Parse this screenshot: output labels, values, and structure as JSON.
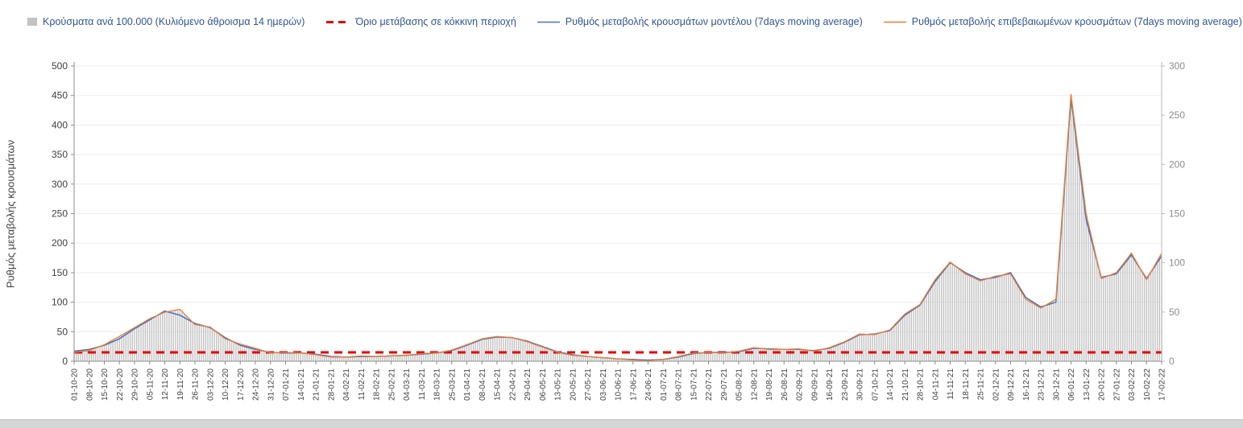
{
  "chart_data": {
    "type": "combo",
    "title": "",
    "legend_position": "top",
    "grid": true,
    "categories": [
      "01-10-20",
      "08-10-20",
      "15-10-20",
      "22-10-20",
      "29-10-20",
      "05-11-20",
      "12-11-20",
      "19-11-20",
      "26-11-20",
      "03-12-20",
      "10-12-20",
      "17-12-20",
      "24-12-20",
      "31-12-20",
      "07-01-21",
      "14-01-21",
      "21-01-21",
      "28-01-21",
      "04-02-21",
      "11-02-21",
      "18-02-21",
      "25-02-21",
      "04-03-21",
      "11-03-21",
      "18-03-21",
      "25-03-21",
      "01-04-21",
      "08-04-21",
      "15-04-21",
      "22-04-21",
      "29-04-21",
      "06-05-21",
      "13-05-21",
      "20-05-21",
      "27-05-21",
      "03-06-21",
      "10-06-21",
      "17-06-21",
      "24-06-21",
      "01-07-21",
      "08-07-21",
      "15-07-21",
      "22-07-21",
      "29-07-21",
      "05-08-21",
      "12-08-21",
      "19-08-21",
      "26-08-21",
      "02-09-21",
      "09-09-21",
      "16-09-21",
      "23-09-21",
      "30-09-21",
      "07-10-21",
      "14-10-21",
      "21-10-21",
      "28-10-21",
      "04-11-21",
      "11-11-21",
      "18-11-21",
      "25-11-21",
      "02-12-21",
      "09-12-21",
      "16-12-21",
      "23-12-21",
      "30-12-21",
      "06-01-22",
      "13-01-22",
      "20-01-22",
      "27-01-22",
      "03-02-22",
      "10-02-22",
      "17-02-22"
    ],
    "series": [
      {
        "key": "cases_per_100k",
        "name": "Κρούσματα ανά 100.000 (Κυλιόμενο άθροισμα 14 ημερών)",
        "type": "bar",
        "axis": "right",
        "color": "#c2c2c2",
        "values": [
          9,
          11,
          17,
          25,
          34,
          43,
          50,
          53,
          37,
          35,
          23,
          17,
          13,
          8,
          9,
          8,
          7,
          4,
          4,
          5,
          5,
          5,
          6,
          8,
          8,
          11,
          17,
          23,
          25,
          24,
          20,
          14,
          9,
          6,
          5,
          4,
          2,
          1,
          1,
          2,
          5,
          8,
          9,
          8,
          10,
          14,
          12,
          12,
          13,
          10,
          14,
          20,
          28,
          27,
          32,
          48,
          58,
          83,
          101,
          89,
          82,
          86,
          89,
          63,
          54,
          63,
          271,
          150,
          84,
          90,
          110,
          83,
          110
        ]
      },
      {
        "key": "red_zone_threshold",
        "name": "Όριο μετάβασης σε κόκκινη περιοχή",
        "type": "threshold",
        "axis": "left",
        "color": "#e60000",
        "value": 15
      },
      {
        "key": "model",
        "name": "Ρυθμός μεταβολής κρουσμάτων μοντέλου (7days moving average)",
        "type": "line",
        "axis": "left",
        "color": "#4472c4",
        "values": [
          17,
          20,
          27,
          38,
          55,
          70,
          85,
          78,
          64,
          57,
          40,
          27,
          20,
          15,
          14,
          14,
          12,
          8,
          7,
          8,
          8,
          9,
          10,
          12,
          14,
          18,
          27,
          37,
          41,
          40,
          34,
          25,
          16,
          11,
          8,
          6,
          4,
          3,
          2,
          3,
          7,
          13,
          15,
          15,
          16,
          22,
          21,
          20,
          20,
          18,
          22,
          32,
          45,
          46,
          52,
          78,
          95,
          135,
          167,
          150,
          138,
          142,
          150,
          108,
          92,
          100,
          445,
          240,
          142,
          148,
          180,
          140,
          178
        ]
      },
      {
        "key": "confirmed",
        "name": "Ρυθμός μεταβολής επιβεβαιωμένων κρουσμάτων (7days moving average)",
        "type": "line",
        "axis": "left",
        "color": "#ed7d31",
        "values": [
          15,
          18,
          28,
          42,
          57,
          72,
          83,
          88,
          62,
          58,
          38,
          29,
          22,
          14,
          15,
          14,
          11,
          7,
          7,
          9,
          8,
          9,
          10,
          13,
          14,
          19,
          28,
          38,
          42,
          40,
          33,
          24,
          15,
          10,
          8,
          6,
          4,
          2,
          1,
          3,
          8,
          14,
          15,
          14,
          17,
          23,
          20,
          20,
          21,
          17,
          23,
          33,
          46,
          45,
          53,
          80,
          96,
          138,
          168,
          148,
          136,
          144,
          148,
          105,
          90,
          105,
          452,
          250,
          140,
          150,
          183,
          138,
          183
        ]
      }
    ],
    "left_axis": {
      "label": "Ρυθμός μεταβολής κρουσμάτων",
      "min": 0,
      "max": 500,
      "step": 50,
      "ticks": [
        0,
        50,
        100,
        150,
        200,
        250,
        300,
        350,
        400,
        450,
        500
      ]
    },
    "right_axis": {
      "label": "",
      "min": 0,
      "max": 300,
      "step": 50,
      "ticks": [
        0,
        50,
        100,
        150,
        200,
        250,
        300
      ]
    }
  }
}
